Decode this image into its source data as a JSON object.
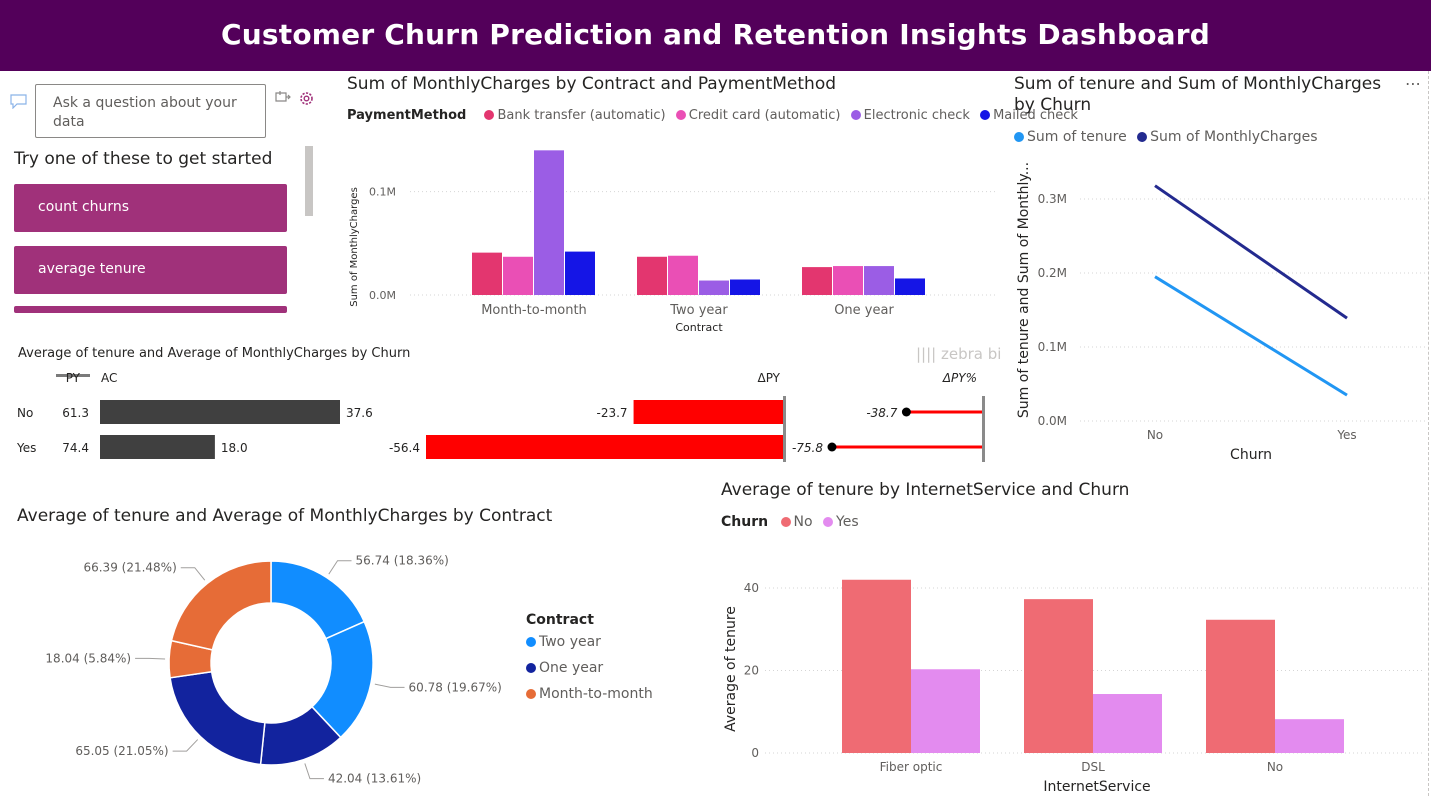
{
  "header": {
    "title": "Customer Churn Prediction and Retention Insights Dashboard"
  },
  "qna": {
    "placeholder": "Ask a question about your data",
    "prompt": "Try one of these to get started",
    "suggestions": [
      "count churns",
      "average tenure"
    ]
  },
  "chart_data": [
    {
      "id": "monthly_by_contract_payment",
      "type": "bar",
      "title": "Sum of MonthlyCharges by Contract and PaymentMethod",
      "legend_title": "PaymentMethod",
      "xlabel": "Contract",
      "ylabel": "Sum of MonthlyCharges",
      "categories": [
        "Month-to-month",
        "Two year",
        "One year"
      ],
      "series": [
        {
          "name": "Bank transfer (automatic)",
          "color": "#e3366f",
          "values": [
            41000,
            37000,
            27000
          ]
        },
        {
          "name": "Credit card (automatic)",
          "color": "#ea4fb5",
          "values": [
            37000,
            38000,
            28000
          ]
        },
        {
          "name": "Electronic check",
          "color": "#9b5de5",
          "values": [
            140000,
            14000,
            28000
          ]
        },
        {
          "name": "Mailed check",
          "color": "#1515e6",
          "values": [
            42000,
            15000,
            16000
          ]
        }
      ],
      "yticks": [
        "0.0M",
        "0.1M"
      ],
      "ylim": [
        0,
        150000
      ]
    },
    {
      "id": "tenure_monthly_by_churn",
      "type": "line",
      "title": "Sum of tenure and Sum of MonthlyCharges by Churn",
      "xlabel": "Churn",
      "ylabel": "Sum of tenure and Sum of Monthly...",
      "x": [
        "No",
        "Yes"
      ],
      "series": [
        {
          "name": "Sum of tenure",
          "color": "#2196f3",
          "values": [
            195000,
            35000
          ]
        },
        {
          "name": "Sum of MonthlyCharges",
          "color": "#232a8f",
          "values": [
            318000,
            139000
          ]
        }
      ],
      "yticks": [
        "0.0M",
        "0.1M",
        "0.2M",
        "0.3M"
      ],
      "ylim": [
        0,
        330000
      ]
    },
    {
      "id": "zebra_avg_by_churn",
      "type": "bar",
      "title": "Average of tenure and Average of MonthlyCharges by Churn",
      "brand": "zebra bi",
      "columns": [
        "PY",
        "AC",
        "ΔPY",
        "ΔPY%"
      ],
      "rows": [
        {
          "label": "No",
          "py": 61.3,
          "ac": 37.6,
          "dpy": -23.7,
          "dpy_pct": -38.7
        },
        {
          "label": "Yes",
          "py": 74.4,
          "ac": 18.0,
          "dpy": -56.4,
          "dpy_pct": -75.8
        }
      ]
    },
    {
      "id": "avg_by_contract_donut",
      "type": "pie",
      "title": "Average of tenure and Average of MonthlyCharges by Contract",
      "legend_title": "Contract",
      "legend": [
        {
          "name": "Two year",
          "color": "#118dff"
        },
        {
          "name": "One year",
          "color": "#12239e"
        },
        {
          "name": "Month-to-month",
          "color": "#e66c37"
        }
      ],
      "slices": [
        {
          "group": "Two year",
          "value": 56.74,
          "label": "56.74 (18.36%)",
          "color": "#118dff"
        },
        {
          "group": "Two year",
          "value": 60.78,
          "label": "60.78 (19.67%)",
          "color": "#118dff"
        },
        {
          "group": "One year",
          "value": 42.04,
          "label": "42.04 (13.61%)",
          "color": "#12239e"
        },
        {
          "group": "One year",
          "value": 65.05,
          "label": "65.05 (21.05%)",
          "color": "#12239e"
        },
        {
          "group": "Month-to-month",
          "value": 18.04,
          "label": "18.04 (5.84%)",
          "color": "#e66c37"
        },
        {
          "group": "Month-to-month",
          "value": 66.39,
          "label": "66.39 (21.48%)",
          "color": "#e66c37"
        }
      ]
    },
    {
      "id": "tenure_by_internet_churn",
      "type": "bar",
      "title": "Average of tenure by InternetService and Churn",
      "legend_title": "Churn",
      "xlabel": "InternetService",
      "ylabel": "Average of tenure",
      "categories": [
        "Fiber optic",
        "DSL",
        "No"
      ],
      "series": [
        {
          "name": "No",
          "color": "#ef6b73",
          "values": [
            42,
            37.3,
            32.3
          ]
        },
        {
          "name": "Yes",
          "color": "#e38bef",
          "values": [
            20.3,
            14.3,
            8.2
          ]
        }
      ],
      "yticks": [
        0,
        20,
        40
      ],
      "ylim": [
        0,
        45
      ]
    }
  ]
}
